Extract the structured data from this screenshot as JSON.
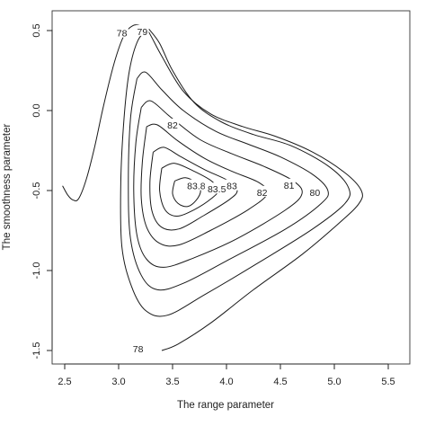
{
  "chart_data": {
    "type": "contour",
    "xlabel": "The range parameter",
    "ylabel": "The smoothness parameter",
    "xlim": [
      2.45,
      5.6
    ],
    "ylim": [
      -1.55,
      0.55
    ],
    "x_ticks": [
      "2.5",
      "3.0",
      "3.5",
      "4.0",
      "4.5",
      "5.0",
      "5.5"
    ],
    "y_ticks": [
      "-1.5",
      "-1.0",
      "-0.5",
      "0.0",
      "0.5"
    ],
    "peak": {
      "x": 3.65,
      "y": -0.5
    },
    "contours": [
      {
        "level": "78",
        "points": [
          [
            2.48,
            -0.47
          ],
          [
            2.53,
            -0.53
          ],
          [
            2.58,
            -0.56
          ],
          [
            2.63,
            -0.55
          ],
          [
            2.7,
            -0.43
          ],
          [
            2.78,
            -0.22
          ],
          [
            2.86,
            0.03
          ],
          [
            2.96,
            0.3
          ],
          [
            3.05,
            0.47
          ],
          [
            3.13,
            0.53
          ],
          [
            3.2,
            0.53
          ],
          [
            3.27,
            0.5
          ],
          [
            3.4,
            0.34
          ],
          [
            3.6,
            0.12
          ],
          [
            3.85,
            -0.02
          ],
          [
            4.15,
            -0.1
          ],
          [
            4.45,
            -0.16
          ],
          [
            4.8,
            -0.26
          ],
          [
            5.1,
            -0.39
          ],
          [
            5.25,
            -0.5
          ],
          [
            5.23,
            -0.58
          ],
          [
            5.05,
            -0.7
          ],
          [
            4.7,
            -0.9
          ],
          [
            4.25,
            -1.12
          ],
          [
            3.85,
            -1.33
          ],
          [
            3.55,
            -1.46
          ],
          [
            3.4,
            -1.5
          ]
        ]
      },
      {
        "level": "79",
        "points": [
          [
            3.28,
            0.51
          ],
          [
            3.18,
            0.44
          ],
          [
            3.1,
            0.25
          ],
          [
            3.05,
            -0.05
          ],
          [
            3.02,
            -0.45
          ],
          [
            3.03,
            -0.85
          ],
          [
            3.12,
            -1.1
          ],
          [
            3.25,
            -1.25
          ],
          [
            3.45,
            -1.28
          ],
          [
            3.8,
            -1.15
          ],
          [
            4.3,
            -0.95
          ],
          [
            4.8,
            -0.74
          ],
          [
            5.1,
            -0.58
          ],
          [
            5.13,
            -0.48
          ],
          [
            4.95,
            -0.35
          ],
          [
            4.6,
            -0.22
          ],
          [
            4.25,
            -0.15
          ],
          [
            3.95,
            -0.07
          ],
          [
            3.7,
            0.05
          ],
          [
            3.5,
            0.25
          ],
          [
            3.38,
            0.42
          ],
          [
            3.28,
            0.51
          ]
        ]
      },
      {
        "level": "80",
        "points": [
          [
            3.17,
            0.2
          ],
          [
            3.11,
            -0.05
          ],
          [
            3.09,
            -0.45
          ],
          [
            3.11,
            -0.8
          ],
          [
            3.21,
            -1.03
          ],
          [
            3.36,
            -1.12
          ],
          [
            3.6,
            -1.08
          ],
          [
            4.0,
            -0.94
          ],
          [
            4.55,
            -0.74
          ],
          [
            4.88,
            -0.58
          ],
          [
            4.94,
            -0.5
          ],
          [
            4.8,
            -0.4
          ],
          [
            4.5,
            -0.29
          ],
          [
            4.2,
            -0.21
          ],
          [
            3.9,
            -0.13
          ],
          [
            3.6,
            0.0
          ],
          [
            3.4,
            0.13
          ],
          [
            3.25,
            0.24
          ],
          [
            3.17,
            0.2
          ]
        ]
      },
      {
        "level": "81",
        "points": [
          [
            3.21,
            0.02
          ],
          [
            3.16,
            -0.2
          ],
          [
            3.14,
            -0.5
          ],
          [
            3.17,
            -0.78
          ],
          [
            3.26,
            -0.93
          ],
          [
            3.42,
            -0.98
          ],
          [
            3.7,
            -0.92
          ],
          [
            4.1,
            -0.8
          ],
          [
            4.55,
            -0.62
          ],
          [
            4.7,
            -0.52
          ],
          [
            4.62,
            -0.44
          ],
          [
            4.35,
            -0.35
          ],
          [
            4.05,
            -0.27
          ],
          [
            3.75,
            -0.18
          ],
          [
            3.48,
            -0.04
          ],
          [
            3.3,
            0.06
          ],
          [
            3.21,
            0.02
          ]
        ]
      },
      {
        "level": "82",
        "points": [
          [
            3.26,
            -0.1
          ],
          [
            3.22,
            -0.32
          ],
          [
            3.21,
            -0.55
          ],
          [
            3.26,
            -0.73
          ],
          [
            3.38,
            -0.83
          ],
          [
            3.56,
            -0.84
          ],
          [
            3.85,
            -0.75
          ],
          [
            4.2,
            -0.62
          ],
          [
            4.38,
            -0.52
          ],
          [
            4.3,
            -0.45
          ],
          [
            4.05,
            -0.38
          ],
          [
            3.8,
            -0.3
          ],
          [
            3.55,
            -0.19
          ],
          [
            3.36,
            -0.09
          ],
          [
            3.26,
            -0.1
          ]
        ]
      },
      {
        "level": "83",
        "points": [
          [
            3.32,
            -0.26
          ],
          [
            3.29,
            -0.45
          ],
          [
            3.31,
            -0.63
          ],
          [
            3.4,
            -0.73
          ],
          [
            3.56,
            -0.74
          ],
          [
            3.78,
            -0.66
          ],
          [
            4.02,
            -0.56
          ],
          [
            4.1,
            -0.5
          ],
          [
            4.02,
            -0.44
          ],
          [
            3.8,
            -0.37
          ],
          [
            3.58,
            -0.29
          ],
          [
            3.42,
            -0.23
          ],
          [
            3.32,
            -0.26
          ]
        ]
      },
      {
        "level": "83.5",
        "points": [
          [
            3.4,
            -0.36
          ],
          [
            3.38,
            -0.5
          ],
          [
            3.43,
            -0.62
          ],
          [
            3.54,
            -0.66
          ],
          [
            3.7,
            -0.62
          ],
          [
            3.86,
            -0.55
          ],
          [
            3.92,
            -0.5
          ],
          [
            3.86,
            -0.44
          ],
          [
            3.7,
            -0.38
          ],
          [
            3.52,
            -0.33
          ],
          [
            3.4,
            -0.36
          ]
        ]
      },
      {
        "level": "83.8",
        "points": [
          [
            3.52,
            -0.44
          ],
          [
            3.5,
            -0.52
          ],
          [
            3.55,
            -0.58
          ],
          [
            3.64,
            -0.6
          ],
          [
            3.72,
            -0.56
          ],
          [
            3.76,
            -0.5
          ],
          [
            3.71,
            -0.45
          ],
          [
            3.62,
            -0.42
          ],
          [
            3.52,
            -0.44
          ]
        ]
      }
    ],
    "labels": [
      {
        "text": "78",
        "x": 3.03,
        "y": 0.485
      },
      {
        "text": "79",
        "x": 3.22,
        "y": 0.495
      },
      {
        "text": "82",
        "x": 3.5,
        "y": -0.09
      },
      {
        "text": "83.8",
        "x": 3.72,
        "y": -0.47
      },
      {
        "text": "83.5",
        "x": 3.91,
        "y": -0.49
      },
      {
        "text": "83",
        "x": 4.05,
        "y": -0.47
      },
      {
        "text": "82",
        "x": 4.33,
        "y": -0.51
      },
      {
        "text": "81",
        "x": 4.58,
        "y": -0.465
      },
      {
        "text": "80",
        "x": 4.82,
        "y": -0.51
      },
      {
        "text": "78",
        "x": 3.18,
        "y": -1.49
      }
    ]
  }
}
